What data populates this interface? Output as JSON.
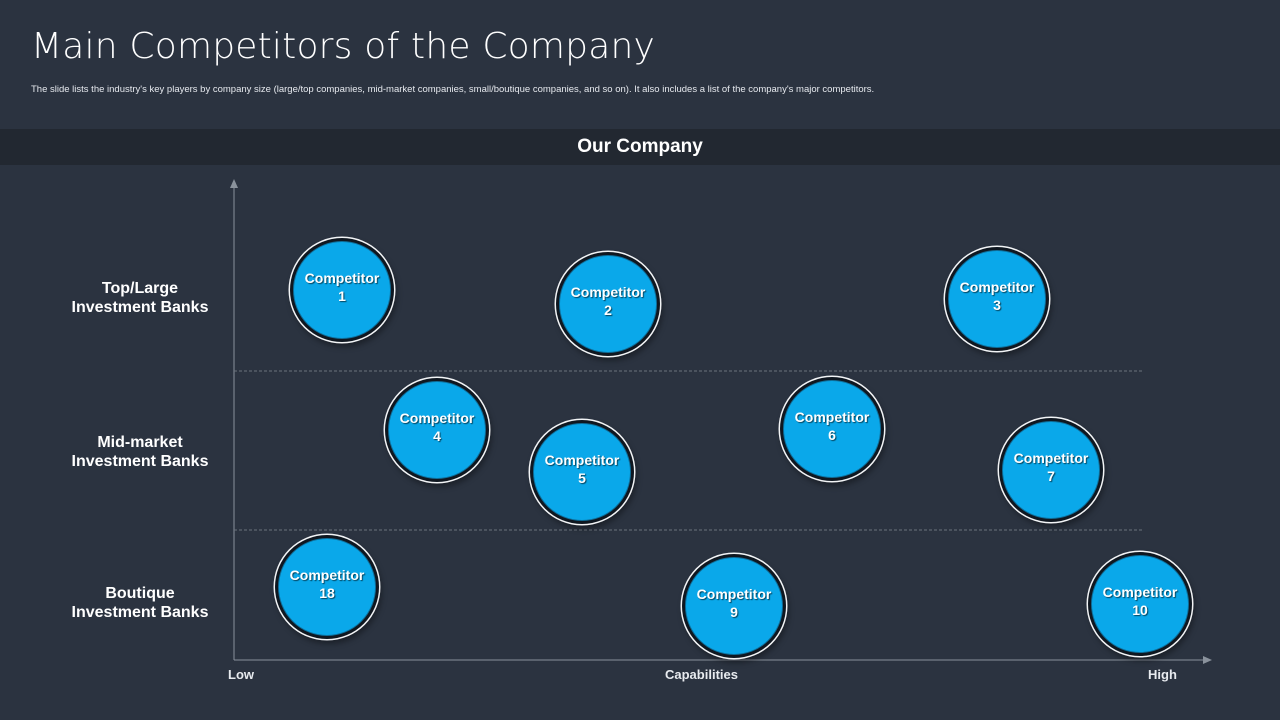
{
  "slide": {
    "title": "Main Competitors of the Company",
    "subtitle": "The slide lists the industry's key players by company size (large/top companies, mid-market companies, small/boutique companies, and so on). It also includes a list of the company's major competitors."
  },
  "band": {
    "label": "Our Company"
  },
  "rows": [
    {
      "line1": "Top/Large",
      "line2": "Investment Banks"
    },
    {
      "line1": "Mid-market",
      "line2": "Investment Banks"
    },
    {
      "line1": "Boutique",
      "line2": "Investment Banks"
    }
  ],
  "x_axis": {
    "low_label": "Low",
    "title": "Capabilities",
    "high_label": "High"
  },
  "competitors": [
    {
      "line1": "Competitor",
      "line2": "1"
    },
    {
      "line1": "Competitor",
      "line2": "2"
    },
    {
      "line1": "Competitor",
      "line2": "3"
    },
    {
      "line1": "Competitor",
      "line2": "4"
    },
    {
      "line1": "Competitor",
      "line2": "5"
    },
    {
      "line1": "Competitor",
      "line2": "6"
    },
    {
      "line1": "Competitor",
      "line2": "7"
    },
    {
      "line1": "Competitor",
      "line2": "18"
    },
    {
      "line1": "Competitor",
      "line2": "9"
    },
    {
      "line1": "Competitor",
      "line2": "10"
    }
  ],
  "colors": {
    "background": "#2b3340",
    "band": "#222831",
    "bubble_fill": "#0aa8ea",
    "bubble_ring": "#f2f4f6",
    "axis": "#8a929c"
  }
}
